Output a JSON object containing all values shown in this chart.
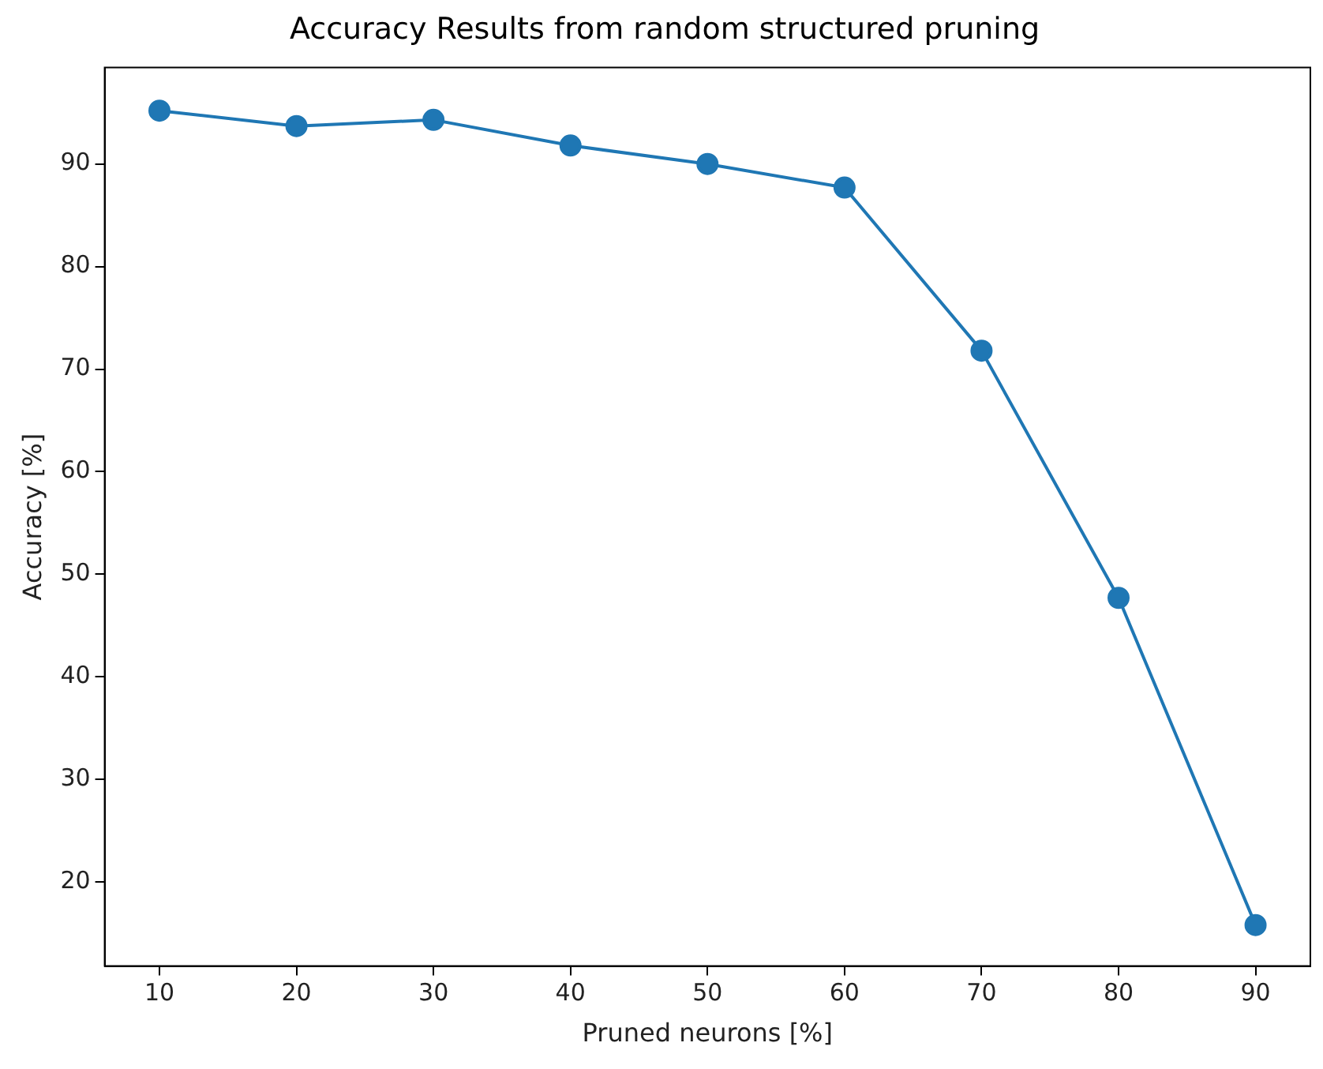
{
  "chart_data": {
    "type": "line",
    "title": "Accuracy Results from random structured pruning",
    "xlabel": "Pruned neurons [%]",
    "ylabel": "Accuracy [%]",
    "x": [
      10,
      20,
      30,
      40,
      50,
      60,
      70,
      80,
      90
    ],
    "series": [
      {
        "color": "#1f77b4",
        "values": [
          95.2,
          93.7,
          94.3,
          91.8,
          90.0,
          87.7,
          71.8,
          47.7,
          15.8
        ]
      }
    ],
    "xlim": [
      6,
      94
    ],
    "xticks": [
      10,
      20,
      30,
      40,
      50,
      60,
      70,
      80,
      90
    ],
    "ylim": [
      11.8,
      99.4
    ],
    "yticks": [
      20,
      30,
      40,
      50,
      60,
      70,
      80,
      90
    ],
    "grid": false,
    "legend": false,
    "marker": "circle",
    "line_style": "solid"
  }
}
